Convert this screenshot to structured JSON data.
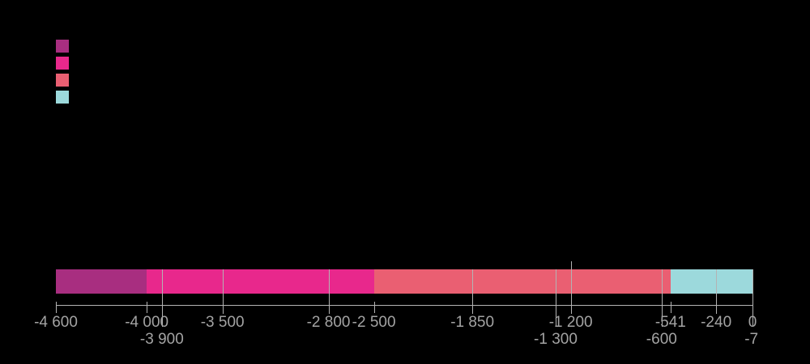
{
  "background_color": "#000000",
  "legend": {
    "swatches": [
      {
        "name": "legend-swatch-1",
        "color": "#a82e80"
      },
      {
        "name": "legend-swatch-2",
        "color": "#e8288c"
      },
      {
        "name": "legend-swatch-3",
        "color": "#ea5f72"
      },
      {
        "name": "legend-swatch-4",
        "color": "#9cd9dc"
      }
    ]
  },
  "chart_data": {
    "type": "timeline",
    "orientation": "horizontal",
    "axis": {
      "min": -4600,
      "max": 0,
      "line_color": "#b3b3b3",
      "label_color": "#a3a3a3"
    },
    "segments": [
      {
        "start": -4600,
        "end": -4000,
        "color": "#a82e80"
      },
      {
        "start": -4000,
        "end": -2500,
        "color": "#e8288c"
      },
      {
        "start": -2500,
        "end": -541,
        "color": "#ea5f72"
      },
      {
        "start": -541,
        "end": 0,
        "color": "#9cd9dc"
      }
    ],
    "ticks": [
      {
        "year": -4600,
        "label": "-4 600",
        "row": 1,
        "line": "tick"
      },
      {
        "year": -4000,
        "label": "-4 000",
        "row": 1,
        "line": "tick"
      },
      {
        "year": -3900,
        "label": "-3 900",
        "row": 2,
        "line": "through-long"
      },
      {
        "year": -3500,
        "label": "-3 500",
        "row": 1,
        "line": "through"
      },
      {
        "year": -2800,
        "label": "-2 800",
        "row": 1,
        "line": "through"
      },
      {
        "year": -2500,
        "label": "-2 500",
        "row": 1,
        "line": "tick"
      },
      {
        "year": -1850,
        "label": "-1 850",
        "row": 1,
        "line": "through"
      },
      {
        "year": -1300,
        "label": "-1 300",
        "row": 2,
        "line": "through-long"
      },
      {
        "year": -1200,
        "label": "-1 200",
        "row": 1,
        "line": "through-above"
      },
      {
        "year": -600,
        "label": "-600",
        "row": 2,
        "line": "through-long"
      },
      {
        "year": -541,
        "label": "-541",
        "row": 1,
        "line": "tick"
      },
      {
        "year": -240,
        "label": "-240",
        "row": 1,
        "line": "through"
      },
      {
        "year": -7,
        "label": "-7",
        "row": 2,
        "line": "none"
      },
      {
        "year": 0,
        "label": "0",
        "row": 1,
        "line": "edge-long"
      }
    ]
  }
}
